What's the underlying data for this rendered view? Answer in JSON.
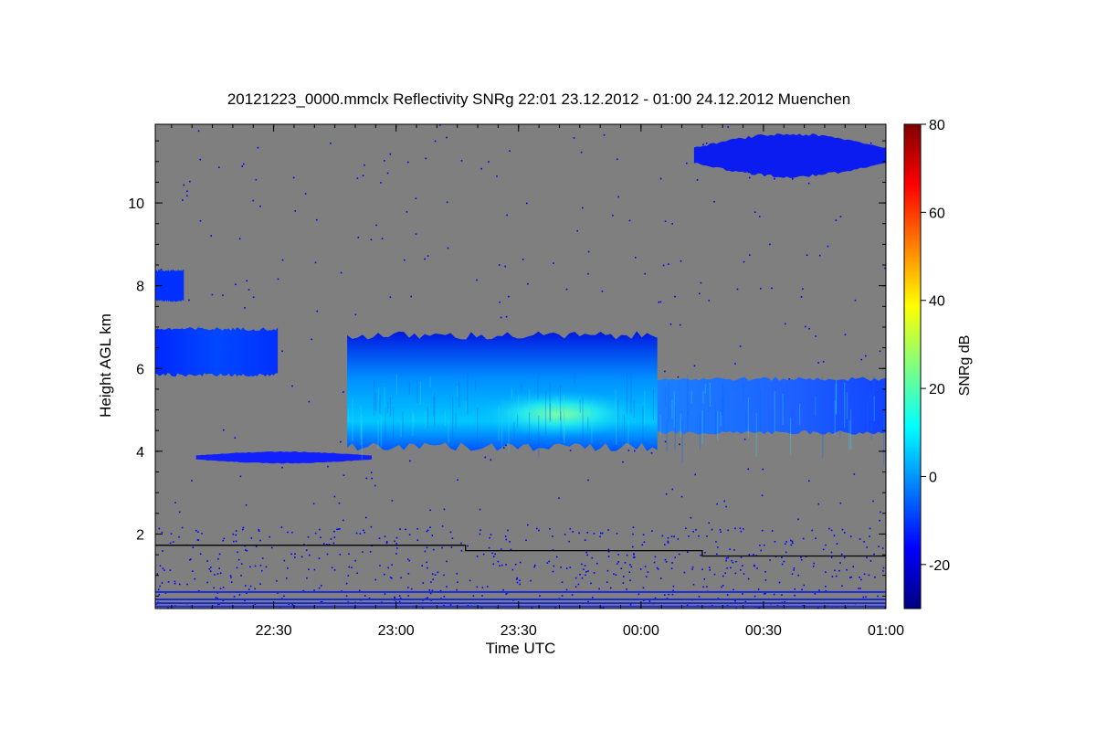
{
  "chart_data": {
    "type": "heatmap",
    "title": "20121223_0000.mmclx Reflectivity SNRg   22:01 23.12.2012 - 01:00 24.12.2012 Muenchen",
    "xlabel": "Time UTC",
    "ylabel": "Height AGL km",
    "x_range": [
      "22:01",
      "01:00"
    ],
    "ylim": [
      0.2,
      11.9
    ],
    "x_ticks": [
      "22:30",
      "23:00",
      "23:30",
      "00:00",
      "00:30",
      "01:00"
    ],
    "y_ticks": [
      2,
      4,
      6,
      8,
      10
    ],
    "colorbar": {
      "label": "SNRg dB",
      "range": [
        -30,
        80
      ],
      "ticks": [
        -20,
        0,
        20,
        40,
        60,
        80
      ],
      "colormap": [
        "#00007f",
        "#0000ff",
        "#007fff",
        "#00ffff",
        "#7fff7f",
        "#ffff00",
        "#ff7f00",
        "#ff0000",
        "#7f0000"
      ]
    },
    "background_color": "#7f7f7f",
    "noise_color": "#0000ff",
    "echo_regions": [
      {
        "name": "high cirrus",
        "t_start": "00:13",
        "t_end": "01:00",
        "h_base": 10.6,
        "h_top": 11.7,
        "snr_max": -15
      },
      {
        "name": "upper layer early",
        "t_start": "22:01",
        "t_end": "22:31",
        "h_base": 5.8,
        "h_top": 7.0,
        "snr_max": -8
      },
      {
        "name": "upper patch",
        "t_start": "22:01",
        "t_end": "22:08",
        "h_base": 7.6,
        "h_top": 8.4,
        "snr_max": -12
      },
      {
        "name": "main cloud",
        "t_start": "22:48",
        "t_end": "00:04",
        "h_base": 4.0,
        "h_top": 6.9,
        "snr_max": 14
      },
      {
        "name": "trailing layer",
        "t_start": "00:04",
        "t_end": "01:00",
        "h_base": 4.4,
        "h_top": 5.8,
        "snr_max": -2
      },
      {
        "name": "thin layer",
        "t_start": "22:11",
        "t_end": "22:54",
        "h_base": 3.7,
        "h_top": 4.0,
        "snr_max": -18
      }
    ],
    "threshold_line": [
      {
        "t_start": "22:01",
        "t_end": "23:17",
        "height": 1.73
      },
      {
        "t_start": "23:17",
        "t_end": "00:15",
        "height": 1.6
      },
      {
        "t_start": "00:15",
        "t_end": "01:00",
        "height": 1.47
      }
    ]
  }
}
